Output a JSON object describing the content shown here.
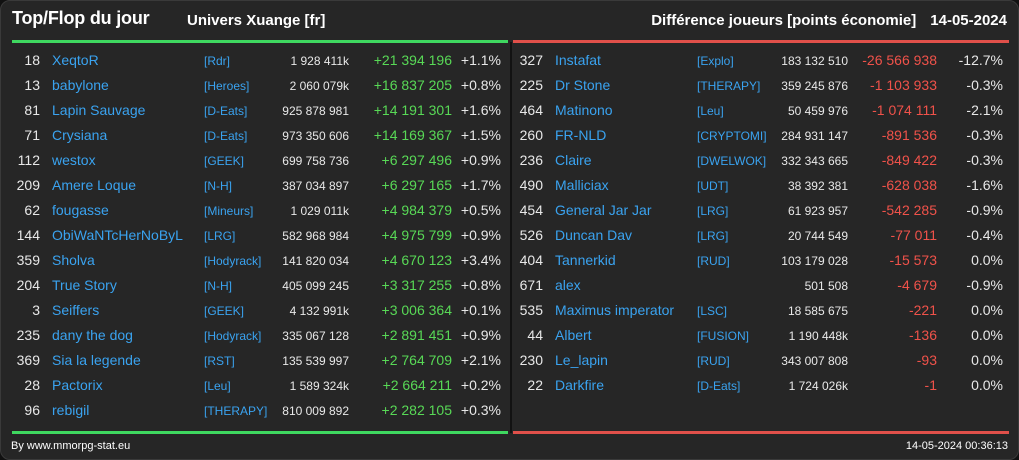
{
  "header": {
    "title": "Top/Flop du jour",
    "subtitle": "Univers Xuange [fr]",
    "right_label": "Différence joueurs [points économie]",
    "date": "14-05-2024"
  },
  "colors": {
    "accent_up": "#3fd860",
    "accent_down": "#e0504a",
    "link": "#3aa3f0"
  },
  "top": [
    {
      "rank": "18",
      "name": "XeqtoR",
      "guild": "[Rdr]",
      "points": "1 928 411k",
      "diff": "+21 394 196",
      "pct": "+1.1%"
    },
    {
      "rank": "13",
      "name": "babylone",
      "guild": "[Heroes]",
      "points": "2 060 079k",
      "diff": "+16 837 205",
      "pct": "+0.8%"
    },
    {
      "rank": "81",
      "name": "Lapin Sauvage",
      "guild": "[D-Eats]",
      "points": "925 878 981",
      "diff": "+14 191 301",
      "pct": "+1.6%"
    },
    {
      "rank": "71",
      "name": "Crysiana",
      "guild": "[D-Eats]",
      "points": "973 350 606",
      "diff": "+14 169 367",
      "pct": "+1.5%"
    },
    {
      "rank": "112",
      "name": "westox",
      "guild": "[GEEK]",
      "points": "699 758 736",
      "diff": "+6 297 496",
      "pct": "+0.9%"
    },
    {
      "rank": "209",
      "name": "Amere Loque",
      "guild": "[N-H]",
      "points": "387 034 897",
      "diff": "+6 297 165",
      "pct": "+1.7%"
    },
    {
      "rank": "62",
      "name": "fougasse",
      "guild": "[Mineurs]",
      "points": "1 029 011k",
      "diff": "+4 984 379",
      "pct": "+0.5%"
    },
    {
      "rank": "144",
      "name": "ObiWaNTcHerNoByL",
      "guild": "[LRG]",
      "points": "582 968 984",
      "diff": "+4 975 799",
      "pct": "+0.9%"
    },
    {
      "rank": "359",
      "name": "Sholva",
      "guild": "[Hodyrack]",
      "points": "141 820 034",
      "diff": "+4 670 123",
      "pct": "+3.4%"
    },
    {
      "rank": "204",
      "name": "True Story",
      "guild": "[N-H]",
      "points": "405 099 245",
      "diff": "+3 317 255",
      "pct": "+0.8%"
    },
    {
      "rank": "3",
      "name": "Seiffers",
      "guild": "[GEEK]",
      "points": "4 132 991k",
      "diff": "+3 006 364",
      "pct": "+0.1%"
    },
    {
      "rank": "235",
      "name": "dany the dog",
      "guild": "[Hodyrack]",
      "points": "335 067 128",
      "diff": "+2 891 451",
      "pct": "+0.9%"
    },
    {
      "rank": "369",
      "name": "Sia la legende",
      "guild": "[RST]",
      "points": "135 539 997",
      "diff": "+2 764 709",
      "pct": "+2.1%"
    },
    {
      "rank": "28",
      "name": "Pactorix",
      "guild": "[Leu]",
      "points": "1 589 324k",
      "diff": "+2 664 211",
      "pct": "+0.2%"
    },
    {
      "rank": "96",
      "name": "rebigil",
      "guild": "[THERAPY]",
      "points": "810 009 892",
      "diff": "+2 282 105",
      "pct": "+0.3%"
    }
  ],
  "flop": [
    {
      "rank": "327",
      "name": "Instafat",
      "guild": "[Explo]",
      "points": "183 132 510",
      "diff": "-26 566 938",
      "pct": "-12.7%"
    },
    {
      "rank": "225",
      "name": "Dr Stone",
      "guild": "[THERAPY]",
      "points": "359 245 876",
      "diff": "-1 103 933",
      "pct": "-0.3%"
    },
    {
      "rank": "464",
      "name": "Matinono",
      "guild": "[Leu]",
      "points": "50 459 976",
      "diff": "-1 074 111",
      "pct": "-2.1%"
    },
    {
      "rank": "260",
      "name": "FR-NLD",
      "guild": "[CRYPTOMI]",
      "points": "284 931 147",
      "diff": "-891 536",
      "pct": "-0.3%"
    },
    {
      "rank": "236",
      "name": "Claire",
      "guild": "[DWELWOK]",
      "points": "332 343 665",
      "diff": "-849 422",
      "pct": "-0.3%"
    },
    {
      "rank": "490",
      "name": "Malliciax",
      "guild": "[UDT]",
      "points": "38 392 381",
      "diff": "-628 038",
      "pct": "-1.6%"
    },
    {
      "rank": "454",
      "name": "General Jar Jar",
      "guild": "[LRG]",
      "points": "61 923 957",
      "diff": "-542 285",
      "pct": "-0.9%"
    },
    {
      "rank": "526",
      "name": "Duncan Dav",
      "guild": "[LRG]",
      "points": "20 744 549",
      "diff": "-77 011",
      "pct": "-0.4%"
    },
    {
      "rank": "404",
      "name": "Tannerkid",
      "guild": "[RUD]",
      "points": "103 179 028",
      "diff": "-15 573",
      "pct": "0.0%"
    },
    {
      "rank": "671",
      "name": "alex",
      "guild": "",
      "points": "501 508",
      "diff": "-4 679",
      "pct": "-0.9%"
    },
    {
      "rank": "535",
      "name": "Maximus imperator",
      "guild": "[LSC]",
      "points": "18 585 675",
      "diff": "-221",
      "pct": "0.0%"
    },
    {
      "rank": "44",
      "name": "Albert",
      "guild": "[FUSION]",
      "points": "1 190 448k",
      "diff": "-136",
      "pct": "0.0%"
    },
    {
      "rank": "230",
      "name": "Le_lapin",
      "guild": "[RUD]",
      "points": "343 007 808",
      "diff": "-93",
      "pct": "0.0%"
    },
    {
      "rank": "22",
      "name": "Darkfire",
      "guild": "[D-Eats]",
      "points": "1 724 026k",
      "diff": "-1",
      "pct": "0.0%"
    }
  ],
  "footer": {
    "credit": "By www.mmorpg-stat.eu",
    "timestamp": "14-05-2024 00:36:13"
  }
}
